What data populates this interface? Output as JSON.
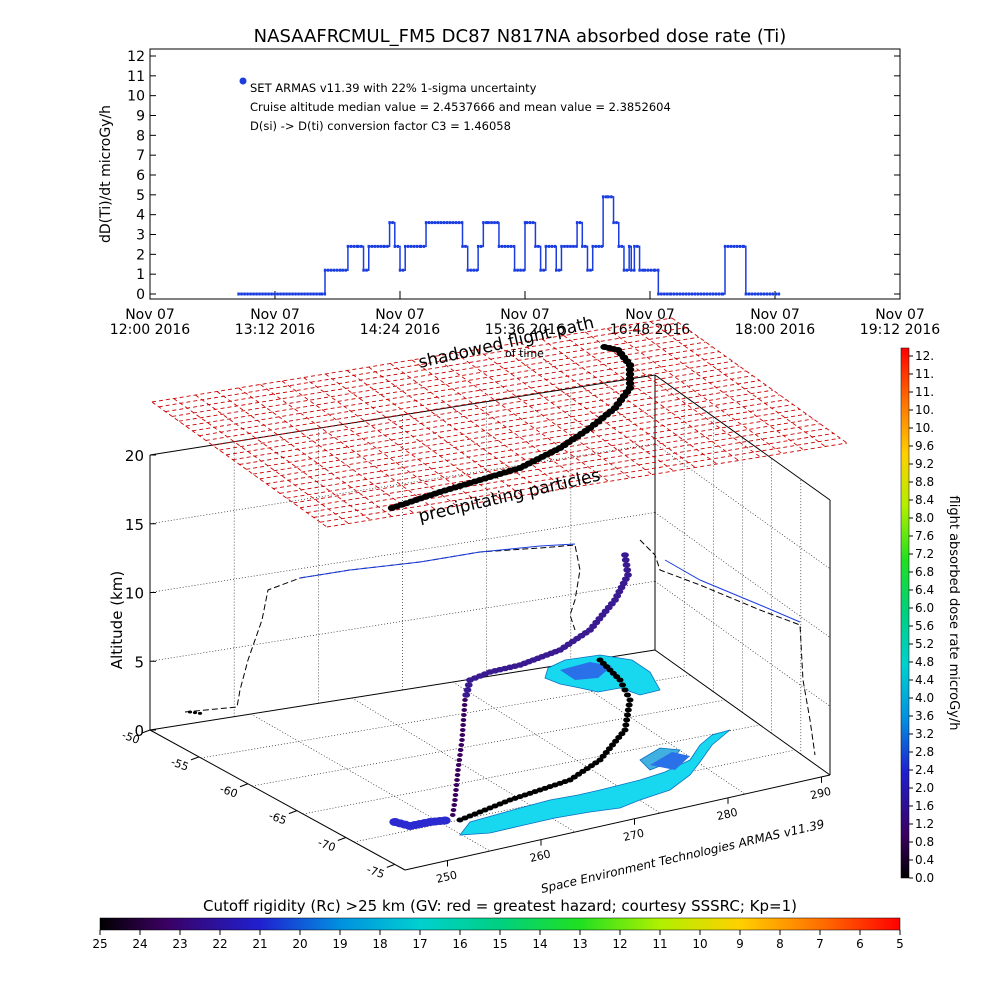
{
  "chart_data": [
    {
      "type": "line",
      "title": "NASAAFRCMUL_FM5 DC87 N817NA absorbed dose rate (Ti)",
      "ylabel": "dD(Ti)/dt microGy/h",
      "ylim": [
        0,
        12
      ],
      "yticks": [
        "0",
        "1",
        "2",
        "3",
        "4",
        "5",
        "6",
        "7",
        "8",
        "9",
        "10",
        "11",
        "12"
      ],
      "xlim_hours": [
        12.0,
        19.2
      ],
      "xticks": [
        {
          "line1": "Nov 07",
          "line2": "12:00 2016",
          "h": 12.0
        },
        {
          "line1": "Nov 07",
          "line2": "13:12 2016",
          "h": 13.2
        },
        {
          "line1": "Nov 07",
          "line2": "14:24 2016",
          "h": 14.4
        },
        {
          "line1": "Nov 07",
          "line2": "15:36 2016",
          "h": 15.6
        },
        {
          "line1": "Nov 07",
          "line2": "16:48 2016",
          "h": 16.8
        },
        {
          "line1": "Nov 07",
          "line2": "18:00 2016",
          "h": 18.0
        },
        {
          "line1": "Nov 07",
          "line2": "19:12 2016",
          "h": 19.2
        }
      ],
      "legend_label": "SET ARMAS v11.39 with 22% 1-sigma uncertainty",
      "annotation_median": "Cruise altitude median value = 2.4537666 and mean value = 2.3852604",
      "annotation_conversion": "D(si) -> D(ti) conversion factor C3 = 1.46058",
      "series_color": "#1a3de0",
      "series": [
        {
          "x_hours": [
            12.85,
            13.65,
            13.68,
            13.85,
            13.9,
            14.0,
            14.05,
            14.1,
            14.25,
            14.3,
            14.35,
            14.4,
            14.45,
            14.6,
            14.65,
            15.0,
            15.05,
            15.15,
            15.2,
            15.25,
            15.35,
            15.5,
            15.6,
            15.62,
            15.7,
            15.75,
            15.8,
            15.9,
            15.95,
            16.1,
            16.15,
            16.2,
            16.25,
            16.35,
            16.4,
            16.45,
            16.5,
            16.55,
            16.6,
            16.62,
            16.65,
            16.7,
            16.75,
            16.85,
            16.88,
            17.0,
            17.5,
            17.52,
            17.7,
            17.72,
            18.05
          ],
          "y": [
            0,
            0,
            1.2,
            1.2,
            2.4,
            2.4,
            1.2,
            2.4,
            2.4,
            3.6,
            2.4,
            1.2,
            2.4,
            2.4,
            3.6,
            2.4,
            1.2,
            2.4,
            3.6,
            3.6,
            2.4,
            1.2,
            3.6,
            3.6,
            2.4,
            1.2,
            2.4,
            1.2,
            2.4,
            3.6,
            2.4,
            1.2,
            2.4,
            4.9,
            4.9,
            3.6,
            2.4,
            1.2,
            2.4,
            1.2,
            2.4,
            1.2,
            1.2,
            1.2,
            0,
            0,
            0,
            2.4,
            2.4,
            0,
            0
          ]
        }
      ]
    },
    {
      "type": "scatter",
      "zlabel": "Altitude (km)",
      "zticks": [
        "0",
        "5",
        "10",
        "15",
        "20"
      ],
      "lat_ticks": [
        "-50",
        "-55",
        "-60",
        "-65",
        "-70",
        "-75"
      ],
      "lon_ticks": [
        "250",
        "260",
        "270",
        "280",
        "290"
      ],
      "label_shadowed": "shadowed flight path",
      "label_of_time": "of time",
      "label_precipitating": "precipitating particles",
      "credit": "Space Environment Technologies ARMAS v11.39",
      "colorbar_label": "flight absorbed dose rate microGy/h",
      "colorbar_ticks": [
        "12.",
        "11.",
        "11.",
        "10.",
        "10.",
        "9.6",
        "9.2",
        "8.8",
        "8.4",
        "8.0",
        "7.6",
        "7.2",
        "6.8",
        "6.4",
        "6.0",
        "5.6",
        "5.2",
        "4.8",
        "4.4",
        "4.0",
        "3.6",
        "3.2",
        "2.8",
        "2.4",
        "2.0",
        "1.6",
        "1.2",
        "0.8",
        "0.4",
        "0.0"
      ],
      "grid_color": "#cc0000"
    },
    {
      "type": "heatmap",
      "title": "Cutoff rigidity (Rc) >25 km (GV: red = greatest hazard; courtesy SSSRC; Kp=1)",
      "ticks": [
        "25",
        "24",
        "23",
        "22",
        "21",
        "20",
        "19",
        "18",
        "17",
        "16",
        "15",
        "14",
        "13",
        "12",
        "11",
        "10",
        "9",
        "8",
        "7",
        "6",
        "5"
      ]
    }
  ]
}
